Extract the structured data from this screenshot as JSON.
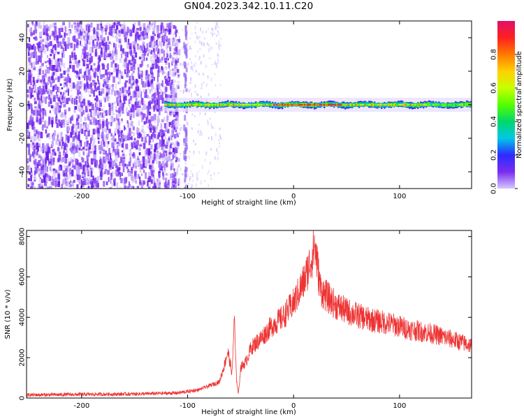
{
  "title": "GN04.2023.342.10.11.C20",
  "colors": {
    "snr_line": "#ee3333",
    "background_noise": "#7a2cf0"
  },
  "chart_data": [
    {
      "type": "heatmap",
      "xlabel": "Height of straight line (km)",
      "ylabel": "Frequency (Hz)",
      "xlim": [
        -252,
        168
      ],
      "ylim": [
        -50,
        50
      ],
      "xticks": [
        "-200",
        "-100",
        "0",
        "100"
      ],
      "yticks": [
        "40",
        "20",
        "0",
        "-20",
        "-40"
      ],
      "colorbar": {
        "label": "Normalized spectral amplitude",
        "range": [
          0,
          1
        ],
        "ticks": [
          "0.0",
          "0.2",
          "0.4",
          "0.6",
          "0.8"
        ],
        "colormap": [
          "#d6c8ff",
          "#7a2cf0",
          "#2b2bff",
          "#00c8e6",
          "#00d86a",
          "#54ff00",
          "#c8ff00",
          "#ffd000",
          "#ff7a00",
          "#ff2020",
          "#e0106a"
        ]
      },
      "noise_region_x": [
        -252,
        -122
      ],
      "signal_band": {
        "x_start": -122,
        "center_hz": 0,
        "halfwidth_hz": 2
      }
    },
    {
      "type": "line",
      "xlabel": "Height of straight line (km)",
      "ylabel": "SNR (10 * v/v)",
      "xlim": [
        -252,
        168
      ],
      "ylim": [
        0,
        8300
      ],
      "xticks": [
        "-200",
        "-100",
        "0",
        "100"
      ],
      "yticks": [
        "8000",
        "6000",
        "4000",
        "2000",
        "0"
      ],
      "series": [
        {
          "x": [
            -252,
            -200,
            -150,
            -110,
            -90,
            -80,
            -70,
            -66,
            -62,
            -58,
            -56,
            -54,
            -52,
            -50,
            -45,
            -40,
            -30,
            -20,
            -10,
            0,
            10,
            15,
            18,
            20,
            22,
            25,
            28,
            32,
            40,
            50,
            70,
            90,
            110,
            130,
            150,
            168
          ],
          "y": [
            150,
            180,
            200,
            250,
            400,
            600,
            800,
            1500,
            2300,
            1200,
            4000,
            1000,
            200,
            1500,
            1800,
            2500,
            3000,
            3600,
            4000,
            4700,
            5800,
            6600,
            7100,
            7600,
            6800,
            5500,
            5200,
            5000,
            4600,
            4300,
            3900,
            3700,
            3400,
            3200,
            2900,
            2600
          ]
        }
      ]
    }
  ]
}
